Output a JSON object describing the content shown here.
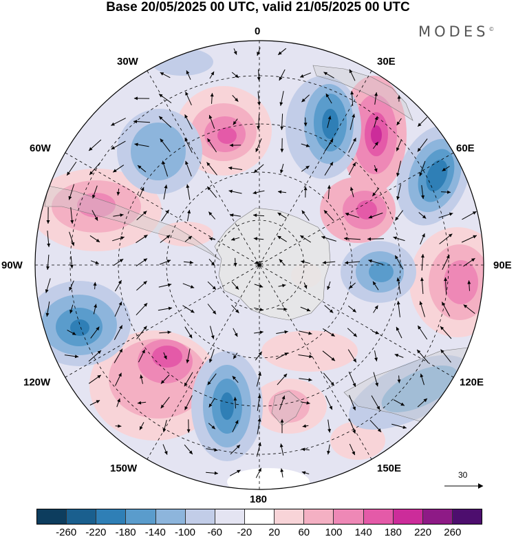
{
  "title": "Base 20/05/2025 00 UTC, valid 21/05/2025 00 UTC",
  "logo": "MODES",
  "logo_mark": "©",
  "longitude_labels": {
    "top": "0",
    "lon30E": "30E",
    "lon60E": "60E",
    "lon90E": "90E",
    "lon120E": "120E",
    "lon150E": "150E",
    "bottom": "180",
    "lon150W": "150W",
    "lon120W": "120W",
    "lon90W": "90W",
    "lon60W": "60W",
    "lon30W": "30W"
  },
  "reference_vector": "30",
  "colorbar": {
    "ticks": [
      "-260",
      "-220",
      "-180",
      "-140",
      "-100",
      "-60",
      "-20",
      "20",
      "60",
      "100",
      "140",
      "180",
      "220",
      "260"
    ],
    "colors": [
      "#0d3d5e",
      "#1a5f8e",
      "#2f7fb6",
      "#5a9ccc",
      "#8db5dc",
      "#c2cde8",
      "#e4e4f2",
      "#ffffff",
      "#f8d4d8",
      "#f4b0c3",
      "#ee88b6",
      "#e45aa8",
      "#cc2c9a",
      "#8e1a86",
      "#4d0e6e"
    ]
  },
  "map_features": {
    "type": "south polar stereographic anomaly map",
    "anomalies": [
      {
        "sign": "negative",
        "strength": "strong",
        "color": "#2f7fb6",
        "region": "south of Africa near 25E"
      },
      {
        "sign": "positive",
        "strength": "strong",
        "color": "#cc2c9a",
        "region": "near 40E"
      },
      {
        "sign": "negative",
        "strength": "strong",
        "color": "#1a5f8e",
        "region": "near 60E"
      },
      {
        "sign": "positive",
        "strength": "moderate",
        "color": "#e45aa8",
        "region": "near 45E, closer to Antarctica"
      },
      {
        "sign": "negative",
        "strength": "moderate",
        "color": "#5a9ccc",
        "region": "near 90E"
      },
      {
        "sign": "positive",
        "strength": "moderate",
        "color": "#ee88b6",
        "region": "near 90E, outer ring"
      },
      {
        "sign": "negative",
        "strength": "moderate",
        "color": "#5a9ccc",
        "region": "south of Australia near 120E"
      },
      {
        "sign": "positive",
        "strength": "weak",
        "color": "#f4b0c3",
        "region": "near 150E, south of New Zealand"
      },
      {
        "sign": "negative",
        "strength": "strong",
        "color": "#2f7fb6",
        "region": "near 170W"
      },
      {
        "sign": "positive",
        "strength": "strong",
        "color": "#e45aa8",
        "region": "near 140W"
      },
      {
        "sign": "negative",
        "strength": "strong",
        "color": "#2f7fb6",
        "region": "near 105W"
      },
      {
        "sign": "positive",
        "strength": "moderate",
        "color": "#ee88b6",
        "region": "west of South America near 70W"
      },
      {
        "sign": "negative",
        "strength": "moderate",
        "color": "#8db5dc",
        "region": "near 40W"
      },
      {
        "sign": "positive",
        "strength": "moderate",
        "color": "#e45aa8",
        "region": "near 10W"
      }
    ]
  }
}
